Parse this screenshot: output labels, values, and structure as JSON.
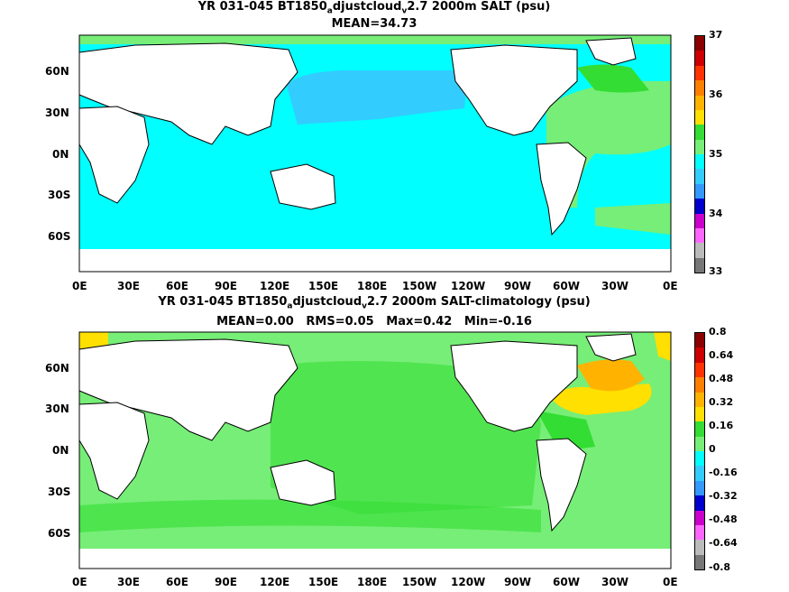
{
  "top_panel": {
    "title_prefix": "YR 031-045 BT1850",
    "title_sub1": "a",
    "title_mid": "djustcloud",
    "title_sub2": "v",
    "title_suffix": "2.7 2000m SALT (psu)",
    "stats": "MEAN=34.73",
    "y_ticks": [
      "60N",
      "30N",
      "0N",
      "30S",
      "60S"
    ],
    "x_ticks": [
      "0E",
      "30E",
      "60E",
      "90E",
      "120E",
      "150E",
      "180E",
      "150W",
      "120W",
      "90W",
      "60W",
      "30W",
      "0E"
    ],
    "colorbar": {
      "labels": [
        "37",
        "36",
        "35",
        "34",
        "33"
      ],
      "colors": [
        "#8b0000",
        "#cc0000",
        "#ff3300",
        "#ff8000",
        "#ffb300",
        "#ffe000",
        "#33dd33",
        "#77ee77",
        "#00ffff",
        "#33ccff",
        "#3399ff",
        "#0000cc",
        "#cc00cc",
        "#ff66ff",
        "#bbbbbb",
        "#777777"
      ]
    }
  },
  "bottom_panel": {
    "title_prefix": "YR 031-045 BT1850",
    "title_sub1": "a",
    "title_mid": "djustcloud",
    "title_sub2": "v",
    "title_suffix": "2.7 2000m SALT-climatology (psu)",
    "stats": "MEAN=0.00   RMS=0.05   Max=0.42   Min=-0.16",
    "y_ticks": [
      "60N",
      "30N",
      "0N",
      "30S",
      "60S"
    ],
    "x_ticks": [
      "0E",
      "30E",
      "60E",
      "90E",
      "120E",
      "150E",
      "180E",
      "150W",
      "120W",
      "90W",
      "60W",
      "30W",
      "0E"
    ],
    "colorbar": {
      "labels": [
        "0.8",
        "0.64",
        "0.48",
        "0.32",
        "0.16",
        "0",
        "-0.16",
        "-0.32",
        "-0.48",
        "-0.64",
        "-0.8"
      ],
      "colors": [
        "#8b0000",
        "#cc0000",
        "#ff3300",
        "#ff8000",
        "#ffb300",
        "#ffe000",
        "#33dd33",
        "#77ee77",
        "#00ffff",
        "#33ccff",
        "#3399ff",
        "#0000cc",
        "#cc00cc",
        "#ff66ff",
        "#bbbbbb",
        "#777777"
      ]
    }
  }
}
